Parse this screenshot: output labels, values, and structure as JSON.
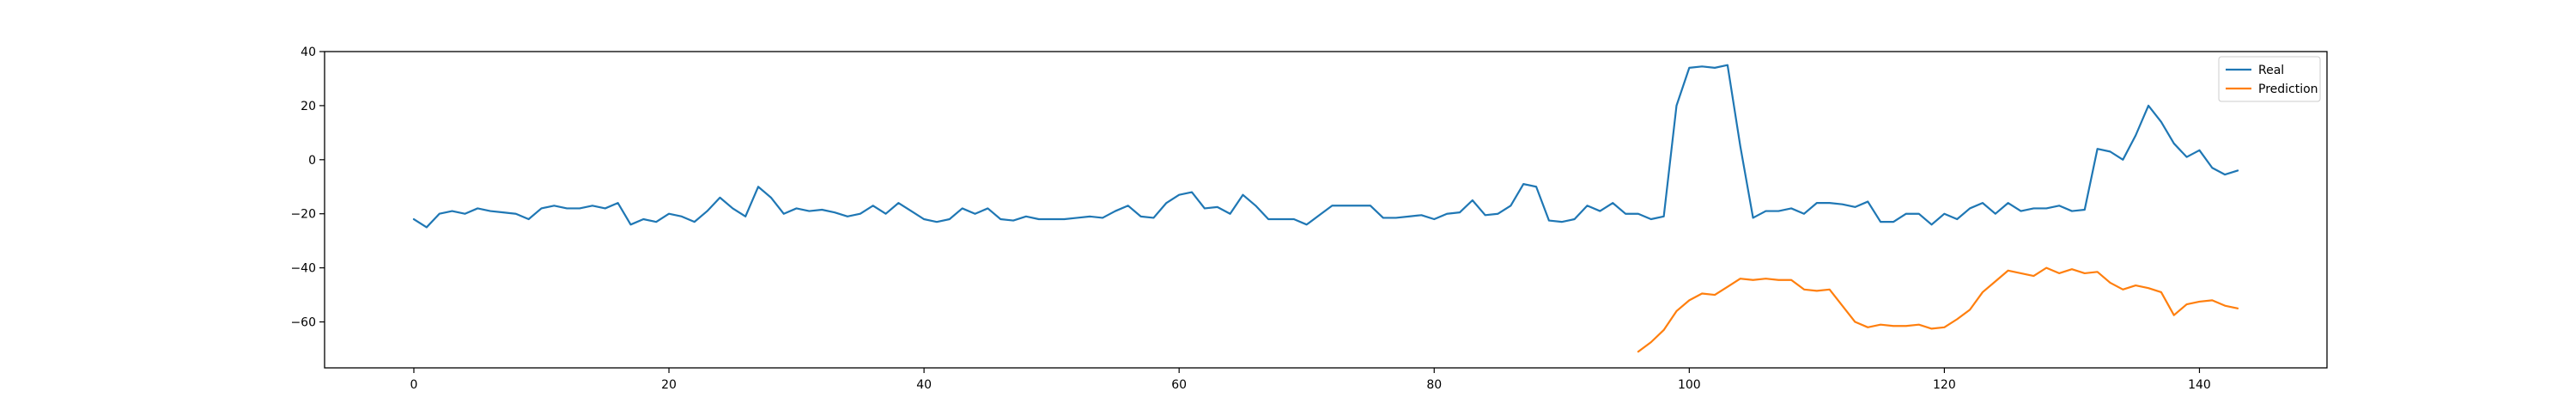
{
  "chart_data": {
    "type": "line",
    "title": "",
    "xlabel": "",
    "ylabel": "",
    "xlim": [
      -7,
      150
    ],
    "ylim": [
      -77,
      40
    ],
    "xticks": [
      0,
      20,
      40,
      60,
      80,
      100,
      120,
      140
    ],
    "yticks": [
      -60,
      -40,
      -20,
      0,
      20,
      40
    ],
    "grid": false,
    "legend_position": "top-right",
    "series": [
      {
        "name": "Real",
        "color": "#1f77b4",
        "x": [
          0,
          1,
          2,
          3,
          4,
          5,
          6,
          7,
          8,
          9,
          10,
          11,
          12,
          13,
          14,
          15,
          16,
          17,
          18,
          19,
          20,
          21,
          22,
          23,
          24,
          25,
          26,
          27,
          28,
          29,
          30,
          31,
          32,
          33,
          34,
          35,
          36,
          37,
          38,
          39,
          40,
          41,
          42,
          43,
          44,
          45,
          46,
          47,
          48,
          49,
          50,
          51,
          52,
          53,
          54,
          55,
          56,
          57,
          58,
          59,
          60,
          61,
          62,
          63,
          64,
          65,
          66,
          67,
          68,
          69,
          70,
          71,
          72,
          73,
          74,
          75,
          76,
          77,
          78,
          79,
          80,
          81,
          82,
          83,
          84,
          85,
          86,
          87,
          88,
          89,
          90,
          91,
          92,
          93,
          94,
          95,
          96,
          97,
          98,
          99,
          100,
          101,
          102,
          103,
          104,
          105,
          106,
          107,
          108,
          109,
          110,
          111,
          112,
          113,
          114,
          115,
          116,
          117,
          118,
          119,
          120,
          121,
          122,
          123,
          124,
          125,
          126,
          127,
          128,
          129,
          130,
          131,
          132,
          133,
          134,
          135,
          136,
          137,
          138,
          139,
          140,
          141,
          142,
          143
        ],
        "values": [
          -22,
          -25,
          -20,
          -19,
          -20,
          -18,
          -19,
          -19.5,
          -20,
          -22,
          -18,
          -17,
          -18,
          -18,
          -17,
          -18,
          -16,
          -24,
          -22,
          -23,
          -20,
          -21,
          -23,
          -19,
          -14,
          -18,
          -21,
          -10,
          -14,
          -20,
          -18,
          -19,
          -18.5,
          -19.5,
          -21,
          -20,
          -17,
          -20,
          -16,
          -19,
          -22,
          -23,
          -22,
          -18,
          -20,
          -18,
          -22,
          -22.5,
          -21,
          -22,
          -22,
          -22,
          -21.5,
          -21,
          -21.5,
          -19,
          -17,
          -21,
          -21.5,
          -16,
          -13,
          -12,
          -18,
          -17.5,
          -20,
          -13,
          -17,
          -22,
          -22,
          -22,
          -24,
          -20.5,
          -17,
          -17,
          -17,
          -17,
          -21.5,
          -21.5,
          -21,
          -20.5,
          -22,
          -20,
          -19.5,
          -15,
          -20.5,
          -20,
          -17,
          -9,
          -10,
          -22.5,
          -23,
          -22,
          -17,
          -19,
          -16,
          -20,
          -20,
          -22,
          -21,
          20,
          34,
          34.5,
          34,
          35,
          5,
          -21.5,
          -19,
          -19,
          -18,
          -20,
          -16,
          -16,
          -16.5,
          -17.5,
          -15.5,
          -23,
          -23,
          -20,
          -20,
          -24,
          -20,
          -22,
          -18,
          -16,
          -20,
          -16,
          -19,
          -18,
          -18,
          -17,
          -19,
          -18.5,
          4,
          3,
          0,
          9,
          20,
          14,
          6,
          1,
          3.5,
          -3,
          -5.5,
          -4
        ]
      },
      {
        "name": "Prediction",
        "color": "#ff7f0e",
        "x": [
          96,
          97,
          98,
          99,
          100,
          101,
          102,
          103,
          104,
          105,
          106,
          107,
          108,
          109,
          110,
          111,
          112,
          113,
          114,
          115,
          116,
          117,
          118,
          119,
          120,
          121,
          122,
          123,
          124,
          125,
          126,
          127,
          128,
          129,
          130,
          131,
          132,
          133,
          134,
          135,
          136,
          137,
          138,
          139,
          140,
          141,
          142,
          143
        ],
        "values": [
          -71,
          -67.5,
          -63,
          -56,
          -52,
          -49.5,
          -50,
          -47,
          -44,
          -44.5,
          -44,
          -44.5,
          -44.5,
          -48,
          -48.5,
          -48,
          -54,
          -60,
          -62,
          -61,
          -61.5,
          -61.5,
          -61,
          -62.5,
          -62,
          -59,
          -55.5,
          -49,
          -45,
          -41,
          -42,
          -43,
          -40,
          -42,
          -40.5,
          -42,
          -41.5,
          -45.5,
          -48,
          -46.5,
          -47.5,
          -49,
          -57.5,
          -53.5,
          -52.5,
          -52,
          -54,
          -55
        ]
      }
    ]
  }
}
